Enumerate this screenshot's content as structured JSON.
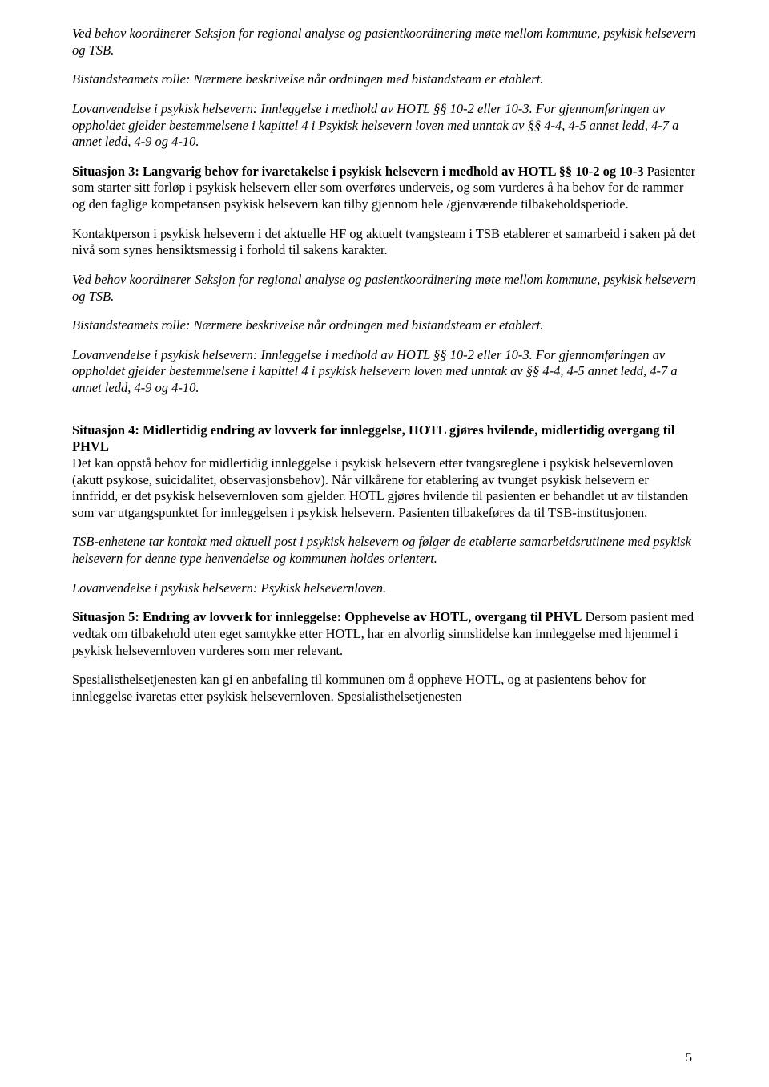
{
  "paragraphs": {
    "p1": "Ved behov koordinerer Seksjon for regional analyse og pasientkoordinering møte mellom kommune, psykisk helsevern og TSB.",
    "p2": "Bistandsteamets rolle: Nærmere beskrivelse når ordningen med bistandsteam er etablert.",
    "p3": "Lovanvendelse i psykisk helsevern: Innleggelse i medhold av HOTL §§ 10-2 eller 10-3. For gjennomføringen av oppholdet gjelder bestemmelsene i kapittel 4 i Psykisk helsevern loven med unntak av §§ 4-4, 4-5 annet ledd, 4-7 a annet ledd, 4-9 og 4-10.",
    "p4_bold": "Situasjon 3: Langvarig behov for ivaretakelse i psykisk helsevern i medhold av HOTL §§ 10-2 og 10-3",
    "p4_rest": " Pasienter som starter sitt forløp i psykisk helsevern eller som overføres underveis, og som vurderes å ha behov for de rammer og den faglige kompetansen psykisk helsevern kan tilby gjennom hele /gjenværende tilbakeholdsperiode.",
    "p5": "Kontaktperson i psykisk helsevern i det aktuelle HF og aktuelt tvangsteam i TSB etablerer et samarbeid i saken på det nivå som synes hensiktsmessig i forhold til sakens karakter.",
    "p6": "Ved behov koordinerer Seksjon for regional analyse og pasientkoordinering møte mellom kommune, psykisk helsevern og TSB.",
    "p7": "Bistandsteamets rolle: Nærmere beskrivelse når ordningen med bistandsteam er etablert.",
    "p8": "Lovanvendelse i psykisk helsevern: Innleggelse i medhold av HOTL §§ 10-2 eller 10-3. For gjennomføringen av oppholdet gjelder bestemmelsene i kapittel 4 i psykisk helsevern loven med unntak av §§ 4-4, 4-5 annet ledd, 4-7 a annet ledd, 4-9 og 4-10.",
    "p9_bold": "Situasjon 4: Midlertidig endring av lovverk for innleggelse, HOTL gjøres hvilende, midlertidig overgang til PHVL",
    "p9_rest": "Det kan oppstå behov for midlertidig innleggelse i psykisk helsevern etter tvangsreglene i psykisk helsevernloven  (akutt psykose, suicidalitet, observasjonsbehov). Når vilkårene for etablering av tvunget psykisk helsevern er innfridd, er det psykisk helsevernloven som gjelder. HOTL gjøres hvilende til pasienten er behandlet ut av tilstanden som var utgangspunktet for innleggelsen i psykisk helsevern. Pasienten tilbakeføres da til TSB-institusjonen.",
    "p10": "TSB-enhetene tar kontakt med aktuell post i psykisk helsevern og følger de etablerte samarbeidsrutinene med psykisk helsevern for denne type henvendelse og kommunen holdes orientert.",
    "p11": "Lovanvendelse i psykisk helsevern: Psykisk helsevernloven.",
    "p12_bold": "Situasjon 5: Endring av lovverk for innleggelse: Opphevelse av HOTL, overgang til PHVL",
    "p12_rest": " Dersom pasient med vedtak om tilbakehold uten eget samtykke etter HOTL, har en alvorlig sinnslidelse kan innleggelse med hjemmel i psykisk helsevernloven vurderes som mer relevant.",
    "p13": "Spesialisthelsetjenesten kan gi en anbefaling til kommunen om å oppheve HOTL, og at pasientens behov for innleggelse ivaretas etter psykisk helsevernloven.  Spesialisthelsetjenesten"
  },
  "pageNumber": "5"
}
